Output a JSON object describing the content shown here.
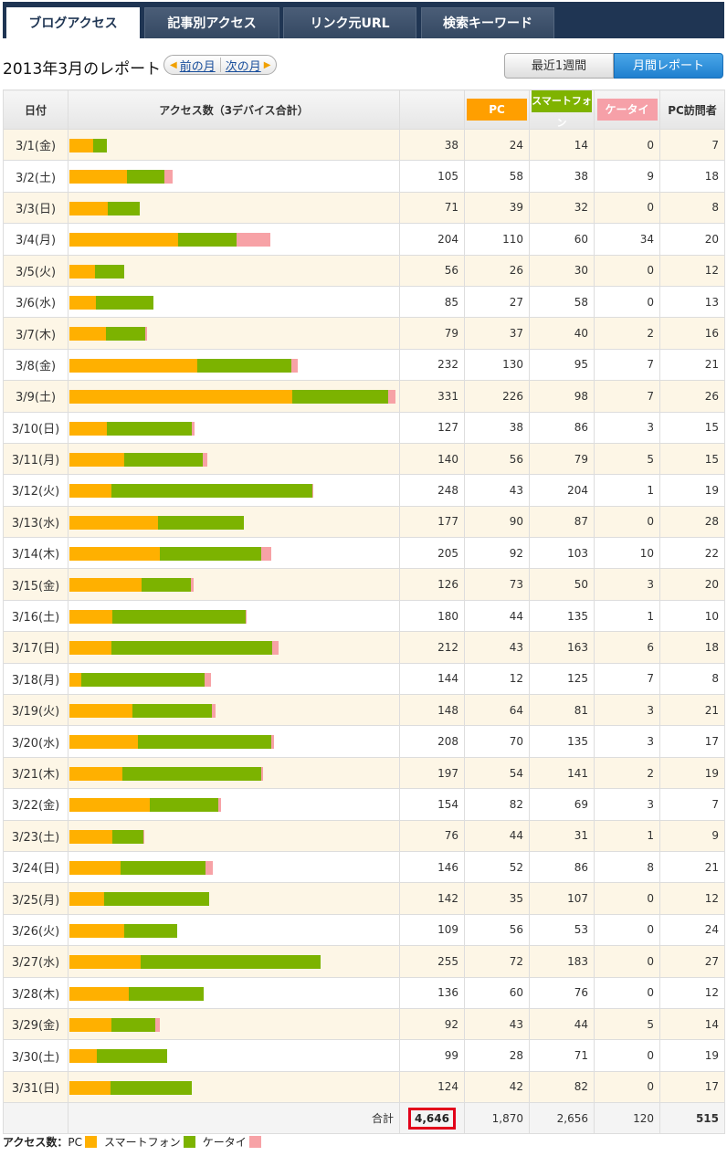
{
  "tabs": [
    {
      "label": "ブログアクセス",
      "active": true
    },
    {
      "label": "記事別アクセス",
      "active": false
    },
    {
      "label": "リンク元URL",
      "active": false
    },
    {
      "label": "検索キーワード",
      "active": false
    }
  ],
  "title": "2013年3月のレポート",
  "nav": {
    "prev": "前の月",
    "next": "次の月"
  },
  "range_buttons": {
    "week": "最近1週間",
    "month": "月間レポート",
    "active": "month"
  },
  "headers": {
    "date": "日付",
    "access": "アクセス数（3デバイス合計）",
    "pc": "PC",
    "smartphone": "スマートフォン",
    "keitai": "ケータイ",
    "pc_visitors": "PC訪問者"
  },
  "colors": {
    "pc": "#ffb000",
    "smartphone": "#7cb300",
    "keitai": "#f7a2a6",
    "highlight": "#e2001a"
  },
  "chart_data": {
    "type": "bar",
    "stacked": true,
    "categories": [
      "3/1(金)",
      "3/2(土)",
      "3/3(日)",
      "3/4(月)",
      "3/5(火)",
      "3/6(水)",
      "3/7(木)",
      "3/8(金)",
      "3/9(土)",
      "3/10(日)",
      "3/11(月)",
      "3/12(火)",
      "3/13(水)",
      "3/14(木)",
      "3/15(金)",
      "3/16(土)",
      "3/17(日)",
      "3/18(月)",
      "3/19(火)",
      "3/20(水)",
      "3/21(木)",
      "3/22(金)",
      "3/23(土)",
      "3/24(日)",
      "3/25(月)",
      "3/26(火)",
      "3/27(水)",
      "3/28(木)",
      "3/29(金)",
      "3/30(土)",
      "3/31(日)"
    ],
    "series": [
      {
        "name": "PC",
        "values": [
          24,
          58,
          39,
          110,
          26,
          27,
          37,
          130,
          226,
          38,
          56,
          43,
          90,
          92,
          73,
          44,
          43,
          12,
          64,
          70,
          54,
          82,
          44,
          52,
          35,
          56,
          72,
          60,
          43,
          28,
          42
        ]
      },
      {
        "name": "スマートフォン",
        "values": [
          14,
          38,
          32,
          60,
          30,
          58,
          40,
          95,
          98,
          86,
          79,
          204,
          87,
          103,
          50,
          135,
          163,
          125,
          81,
          135,
          141,
          69,
          31,
          86,
          107,
          53,
          183,
          76,
          44,
          71,
          82
        ]
      },
      {
        "name": "ケータイ",
        "values": [
          0,
          9,
          0,
          34,
          0,
          0,
          2,
          7,
          7,
          3,
          5,
          1,
          0,
          10,
          3,
          1,
          6,
          7,
          3,
          3,
          2,
          3,
          1,
          8,
          0,
          0,
          0,
          0,
          5,
          0,
          0
        ]
      }
    ],
    "totals": [
      38,
      105,
      71,
      204,
      56,
      85,
      79,
      232,
      331,
      127,
      140,
      248,
      177,
      205,
      126,
      180,
      212,
      144,
      148,
      208,
      197,
      154,
      76,
      146,
      142,
      109,
      255,
      136,
      92,
      99,
      124
    ],
    "pc_visitors": [
      7,
      18,
      8,
      20,
      12,
      13,
      16,
      21,
      26,
      15,
      15,
      19,
      28,
      22,
      20,
      10,
      18,
      8,
      21,
      17,
      19,
      7,
      9,
      21,
      12,
      24,
      27,
      12,
      14,
      19,
      17
    ]
  },
  "summary": {
    "label": "合計",
    "total": "4,646",
    "pc": "1,870",
    "smartphone": "2,656",
    "keitai": "120",
    "pc_visitors": "515"
  },
  "legend": {
    "title": "アクセス数：",
    "pc": "PC",
    "smartphone": "スマートフォン",
    "keitai": "ケータイ"
  }
}
